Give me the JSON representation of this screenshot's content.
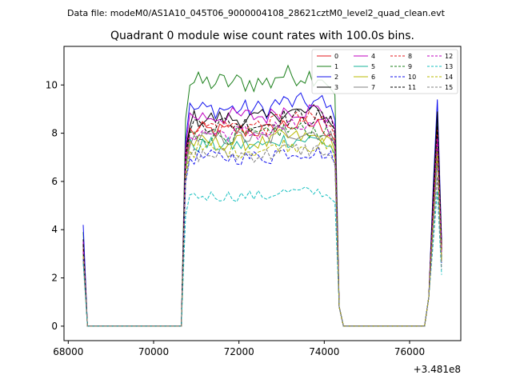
{
  "figure": {
    "suptitle": "Data file: modeM0/AS1A10_045T06_9000004108_28621cztM0_level2_quad_clean.evt",
    "title": "Quadrant 0 module wise count rates with 100.0s bins.",
    "x_offset_label": "+3.481e8"
  },
  "chart_data": {
    "type": "line",
    "title": "Quadrant 0 module wise count rates with 100.0s bins.",
    "xlabel": "",
    "ylabel": "",
    "x_offset": 348100000,
    "xlim": [
      67900,
      77200
    ],
    "ylim": [
      -0.6,
      11.6
    ],
    "x_ticks": [
      68000,
      70000,
      72000,
      74000,
      76000
    ],
    "x_tick_labels": [
      "68000",
      "70000",
      "72000",
      "74000",
      "76000"
    ],
    "y_ticks": [
      0,
      2,
      4,
      6,
      8,
      10
    ],
    "y_tick_labels": [
      "0",
      "2",
      "4",
      "6",
      "8",
      "10"
    ],
    "grid": false,
    "legend_position": "top-right",
    "legend_columns": 4,
    "segments": [
      {
        "x_start": 68350,
        "x_end": 68450,
        "level_index": 0
      },
      {
        "x_start": 70650,
        "x_end": 74250,
        "level_index": 1
      },
      {
        "x_start": 76450,
        "x_end": 76750,
        "level_index": 2
      }
    ],
    "series": [
      {
        "name": "0",
        "color": "#e31a1c",
        "dash": "solid",
        "plateau": 8.1,
        "start": 3.4,
        "end": 8.7
      },
      {
        "name": "1",
        "color": "#1a7f1a",
        "dash": "solid",
        "plateau": 10.1,
        "start": 3.9,
        "end": 8.6
      },
      {
        "name": "2",
        "color": "#1010ee",
        "dash": "solid",
        "plateau": 9.0,
        "start": 4.2,
        "end": 9.4
      },
      {
        "name": "3",
        "color": "#000000",
        "dash": "solid",
        "plateau": 8.6,
        "start": 3.6,
        "end": 8.9
      },
      {
        "name": "4",
        "color": "#c000c0",
        "dash": "solid",
        "plateau": 8.7,
        "start": 3.5,
        "end": 8.1
      },
      {
        "name": "5",
        "color": "#17b39a",
        "dash": "solid",
        "plateau": 7.5,
        "start": 3.1,
        "end": 7.2
      },
      {
        "name": "6",
        "color": "#b8b800",
        "dash": "solid",
        "plateau": 7.6,
        "start": 3.2,
        "end": 7.4
      },
      {
        "name": "7",
        "color": "#808080",
        "dash": "solid",
        "plateau": 7.8,
        "start": 3.3,
        "end": 7.0
      },
      {
        "name": "8",
        "color": "#e31a1c",
        "dash": "dashed",
        "plateau": 8.3,
        "start": 3.2,
        "end": 8.2
      },
      {
        "name": "9",
        "color": "#1a7f1a",
        "dash": "dashed",
        "plateau": 7.9,
        "start": 3.0,
        "end": 7.6
      },
      {
        "name": "10",
        "color": "#1010ee",
        "dash": "dashed",
        "plateau": 7.0,
        "start": 2.8,
        "end": 6.9
      },
      {
        "name": "11",
        "color": "#000000",
        "dash": "dashed",
        "plateau": 8.4,
        "start": 3.4,
        "end": 8.3
      },
      {
        "name": "12",
        "color": "#c000c0",
        "dash": "dashed",
        "plateau": 8.0,
        "start": 3.1,
        "end": 7.8
      },
      {
        "name": "13",
        "color": "#17c0c0",
        "dash": "dashed",
        "plateau": 5.4,
        "start": 2.6,
        "end": 5.6
      },
      {
        "name": "14",
        "color": "#b8b800",
        "dash": "dashed",
        "plateau": 7.3,
        "start": 2.9,
        "end": 7.1
      },
      {
        "name": "15",
        "color": "#808080",
        "dash": "dashed",
        "plateau": 7.1,
        "start": 2.7,
        "end": 6.2
      }
    ]
  }
}
